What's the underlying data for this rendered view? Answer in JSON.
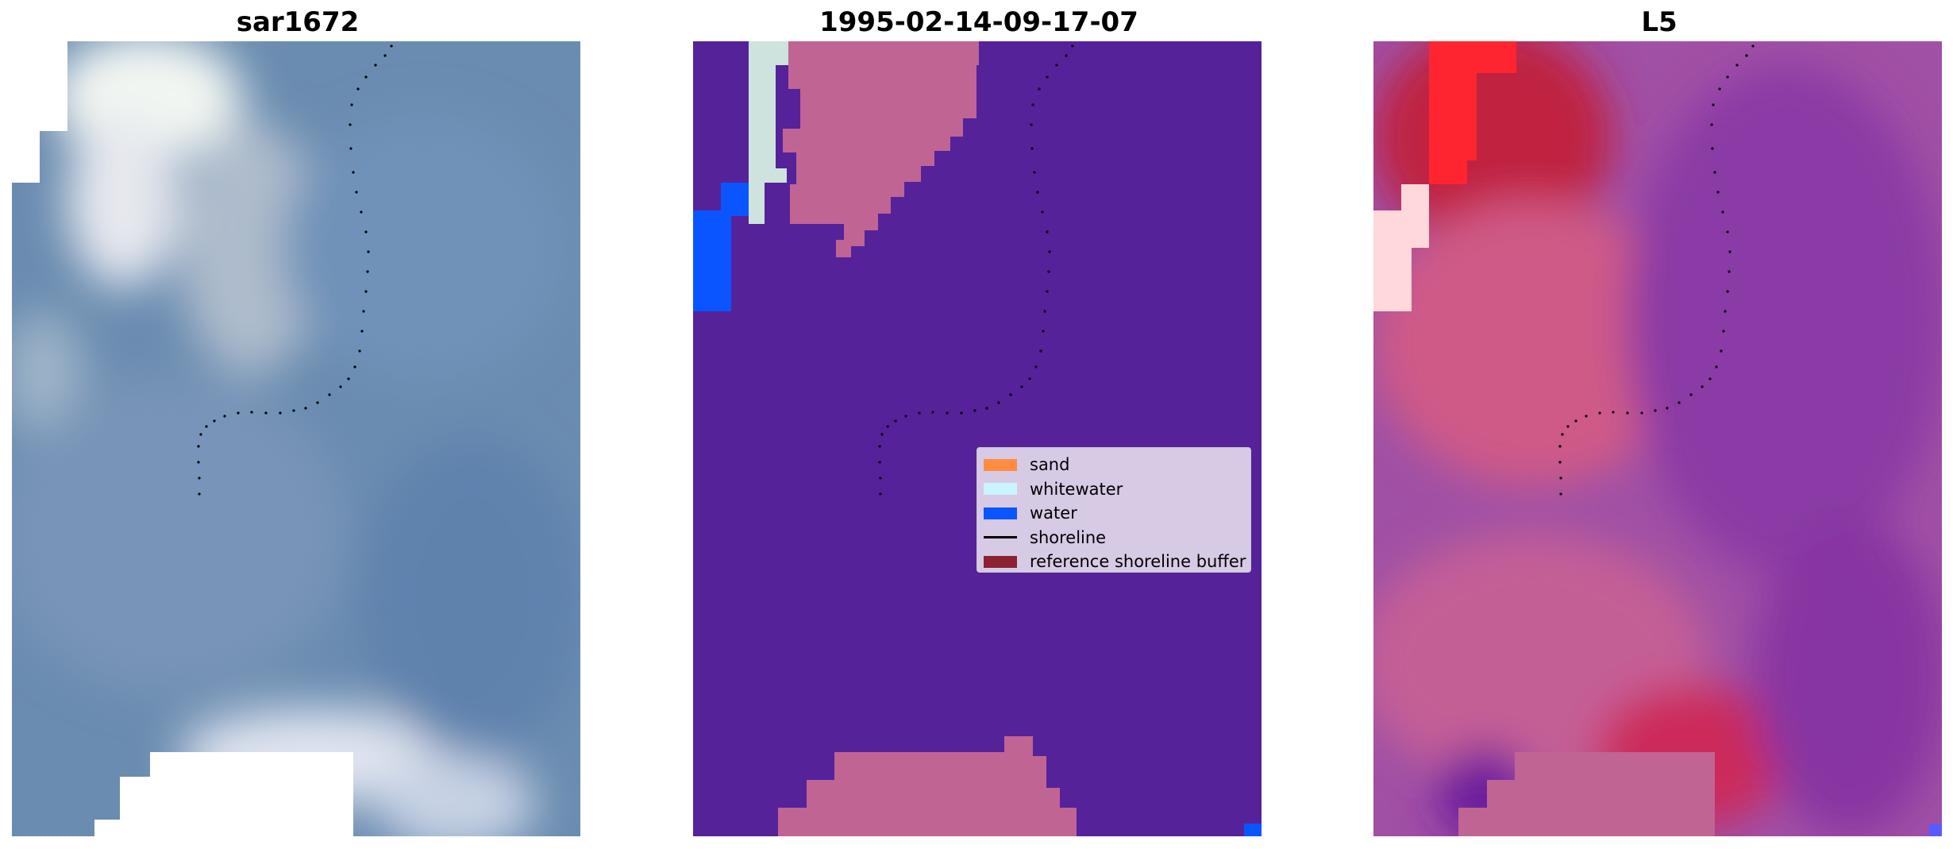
{
  "panels": [
    {
      "title": "sar1672",
      "kind": "rgb"
    },
    {
      "title": "1995-02-14-09-17-07",
      "kind": "classified"
    },
    {
      "title": "L5",
      "kind": "index"
    }
  ],
  "legend": {
    "items": [
      {
        "label": "sand",
        "color": "#ff8c40",
        "shape": "patch"
      },
      {
        "label": "whitewater",
        "color": "#c8f5ff",
        "shape": "patch"
      },
      {
        "label": "water",
        "color": "#0a55ff",
        "shape": "patch"
      },
      {
        "label": "shoreline",
        "color": "#000000",
        "shape": "line"
      },
      {
        "label": "reference shoreline buffer",
        "color": "#8b2232",
        "shape": "patch"
      }
    ]
  },
  "colors": {
    "classified_background": "#55229a",
    "buffer_overlay": "#c06493",
    "rgb_base": "#6a8cb0",
    "index_base": "#a050a5"
  }
}
